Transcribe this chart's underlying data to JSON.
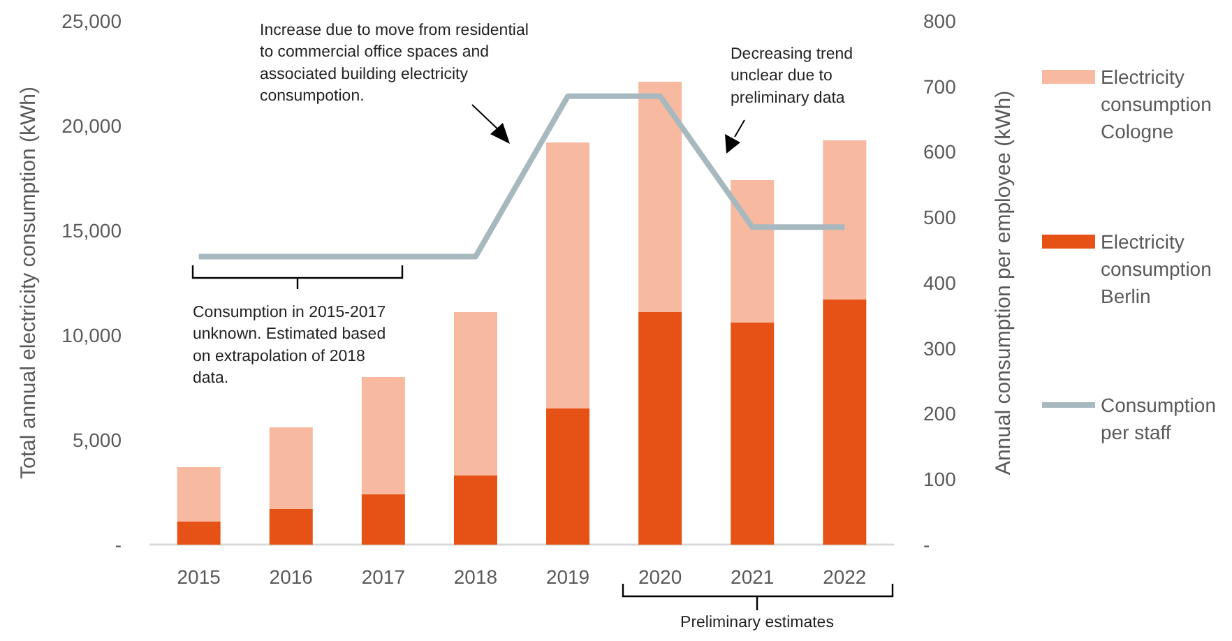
{
  "chart_data": {
    "type": "bar",
    "stacked": true,
    "categories": [
      "2015",
      "2016",
      "2017",
      "2018",
      "2019",
      "2020",
      "2021",
      "2022"
    ],
    "ylabel": "Total annual electricity consumption (kWh)",
    "y2label": "Annual consumption per employee (kWh)",
    "ylim": [
      0,
      25000
    ],
    "yticks": [
      {
        "value": 0,
        "label": "-"
      },
      {
        "value": 5000,
        "label": "5,000"
      },
      {
        "value": 10000,
        "label": "10,000"
      },
      {
        "value": 15000,
        "label": "15,000"
      },
      {
        "value": 20000,
        "label": "20,000"
      },
      {
        "value": 25000,
        "label": "25,000"
      }
    ],
    "y2lim": [
      0,
      800
    ],
    "y2ticks": [
      {
        "value": 0,
        "label": "-"
      },
      100,
      200,
      300,
      400,
      500,
      600,
      700,
      800
    ],
    "series": [
      {
        "name": "Electricity consumption Berlin",
        "color": "#e65216",
        "values": [
          1100,
          1700,
          2400,
          3300,
          6500,
          11100,
          10600,
          11700
        ]
      },
      {
        "name": "Electricity consumption Cologne",
        "color": "#f7b9a0",
        "values": [
          2600,
          3900,
          5600,
          7800,
          12700,
          11000,
          6800,
          7600
        ]
      },
      {
        "name": "Consumption per staff",
        "type": "line",
        "axis": "y2",
        "color": "#a7b9be",
        "values": [
          440,
          440,
          440,
          440,
          685,
          685,
          485,
          485
        ]
      }
    ],
    "legend": "right",
    "grid": false,
    "annotations": [
      "Increase due to move from residential to commercial office spaces and associated building electricity consumpotion.",
      "Consumption in 2015-2017 unknown. Estimated based on extrapolation of 2018 data.",
      "Decreasing trend unclear due to preliminary data",
      "Preliminary estimates"
    ]
  }
}
